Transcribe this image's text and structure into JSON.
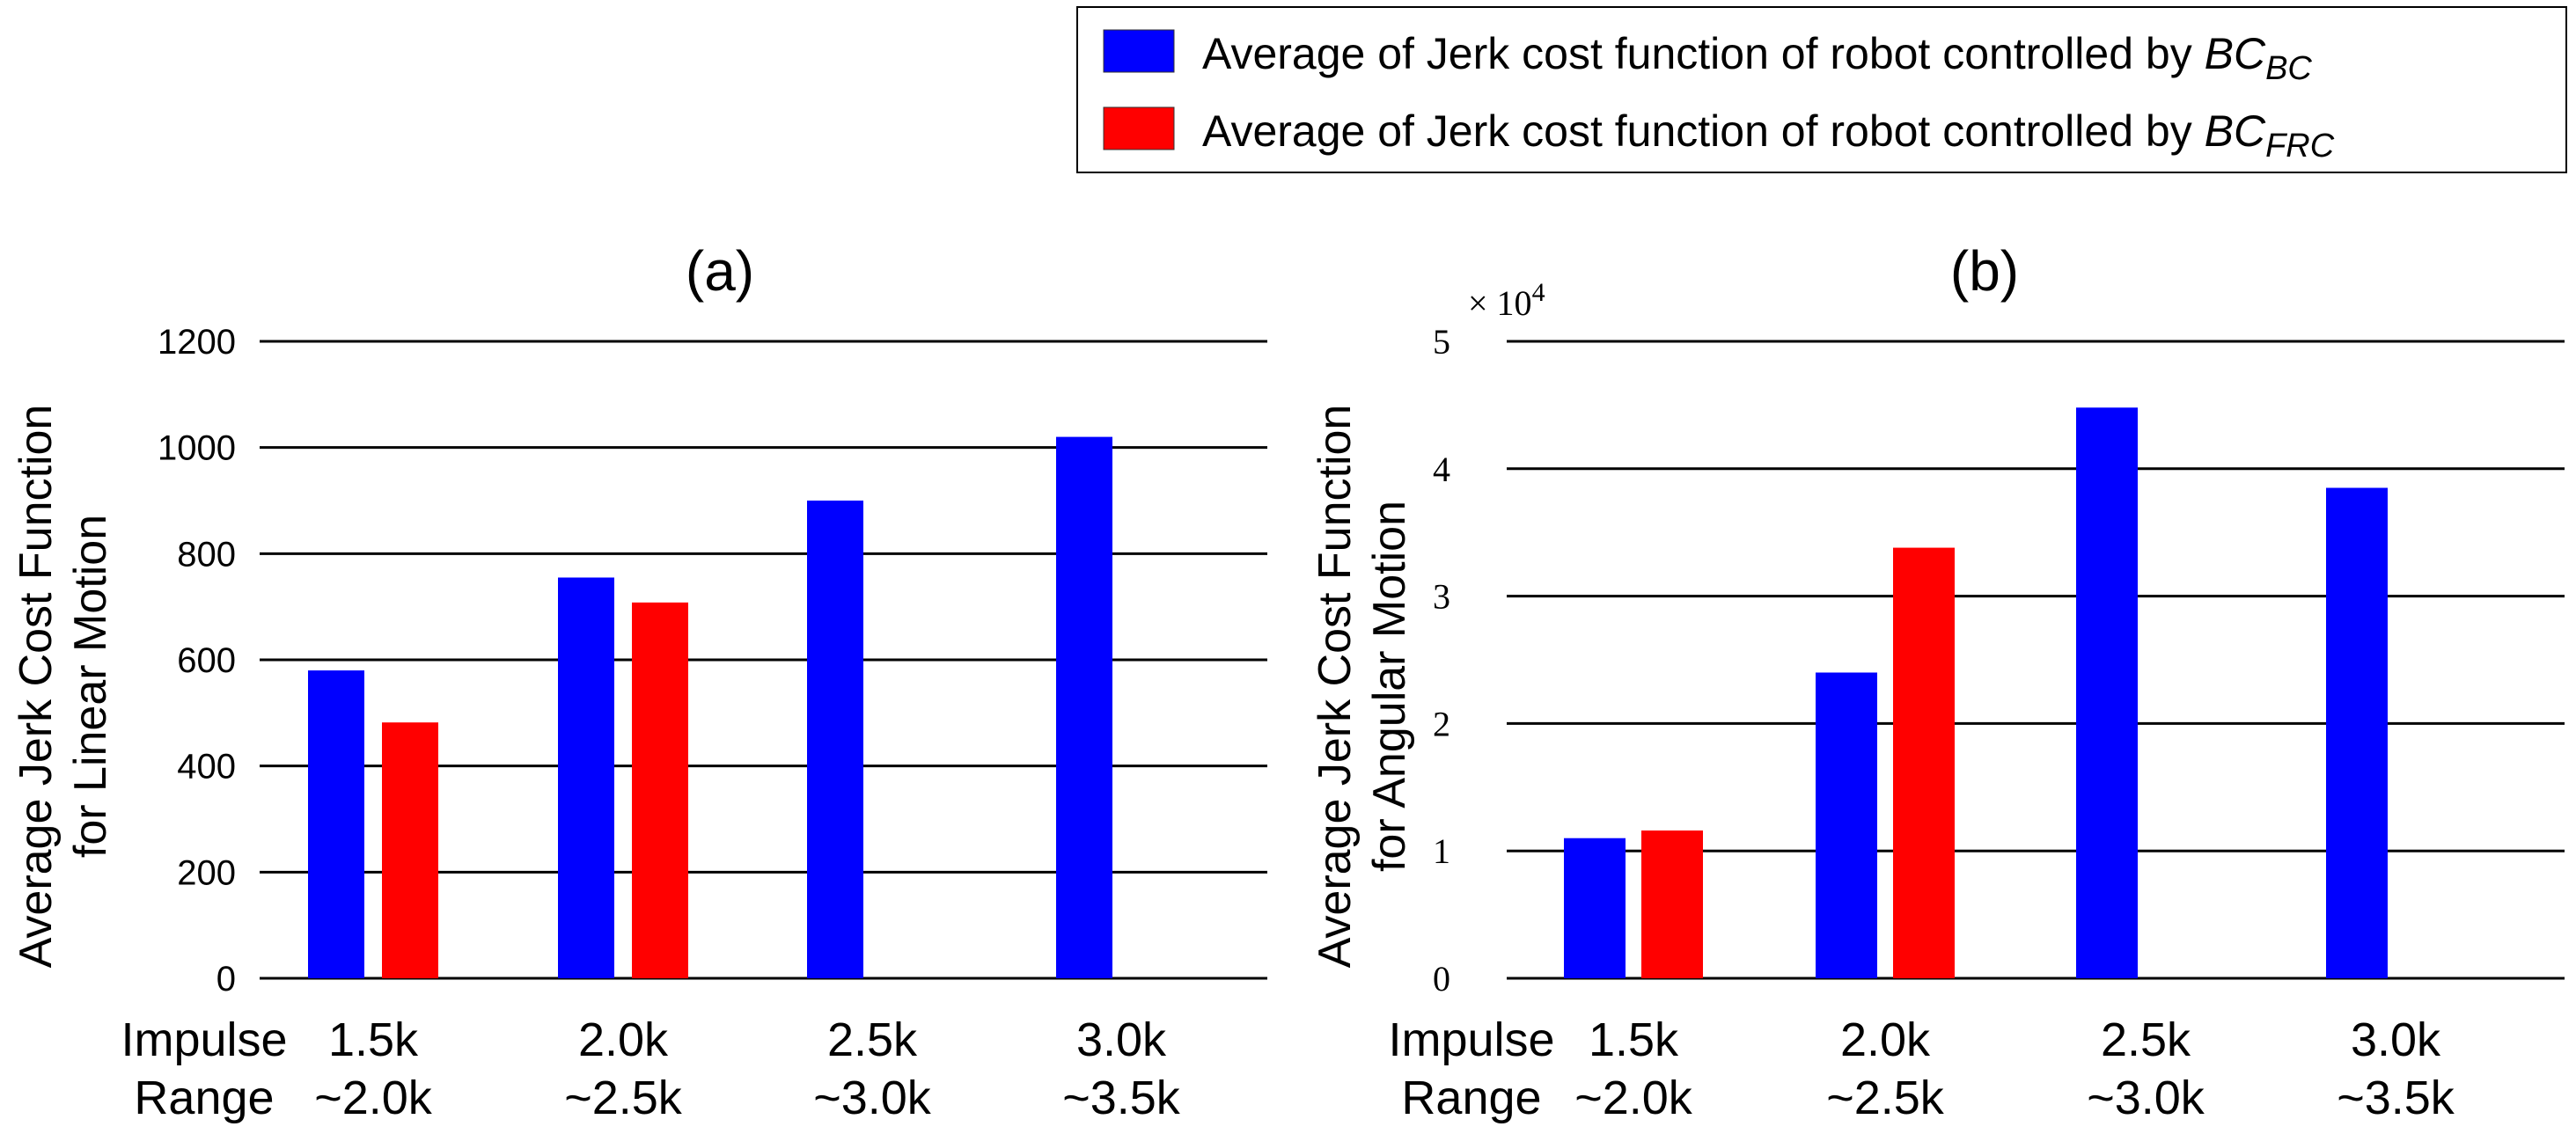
{
  "legend": {
    "items": [
      {
        "label": "Average  of Jerk cost function of robot controlled by ",
        "var": "BC",
        "sub": "BC",
        "color": "#0000ff"
      },
      {
        "label": "Average  of Jerk cost function of robot controlled by ",
        "var": "BC",
        "sub": "FRC",
        "color": "#ff0000"
      }
    ]
  },
  "x_axis_title": [
    "Impulse",
    "Range"
  ],
  "chart_data": [
    {
      "type": "bar",
      "title": "(a)",
      "ylabel": [
        "Average  Jerk Cost Function",
        "for Linear Motion"
      ],
      "xlabel": "Impulse Range",
      "categories": [
        [
          "1.5k",
          "~2.0k"
        ],
        [
          "2.0k",
          "~2.5k"
        ],
        [
          "2.5k",
          "~3.0k"
        ],
        [
          "3.0k",
          "~3.5k"
        ]
      ],
      "ylim": [
        0,
        1200
      ],
      "yticks": [
        0,
        200,
        400,
        600,
        800,
        1000,
        1200
      ],
      "ytick_labels": [
        "0",
        "200",
        "400",
        "600",
        "800",
        "1000",
        "1200"
      ],
      "grid": true,
      "series": [
        {
          "name": "BC_BC",
          "color": "#0000ff",
          "values": [
            580,
            755,
            900,
            1020
          ]
        },
        {
          "name": "BC_FRC",
          "color": "#ff0000",
          "values": [
            482,
            708,
            null,
            null
          ]
        }
      ]
    },
    {
      "type": "bar",
      "title": "(b)",
      "multiplier": "× 10",
      "multiplier_exp": "4",
      "ylabel": [
        "Average  Jerk Cost Function",
        "for Angular Motion"
      ],
      "xlabel": "Impulse Range",
      "categories": [
        [
          "1.5k",
          "~2.0k"
        ],
        [
          "2.0k",
          "~2.5k"
        ],
        [
          "2.5k",
          "~3.0k"
        ],
        [
          "3.0k",
          "~3.5k"
        ]
      ],
      "ylim": [
        0,
        5
      ],
      "yticks": [
        0,
        1,
        2,
        3,
        4,
        5
      ],
      "ytick_labels": [
        "0",
        "1",
        "2",
        "3",
        "4",
        "5"
      ],
      "grid": true,
      "series": [
        {
          "name": "BC_BC",
          "color": "#0000ff",
          "values": [
            1.1,
            2.4,
            4.48,
            3.85
          ]
        },
        {
          "name": "BC_FRC",
          "color": "#ff0000",
          "values": [
            1.16,
            3.38,
            null,
            null
          ]
        }
      ]
    }
  ]
}
